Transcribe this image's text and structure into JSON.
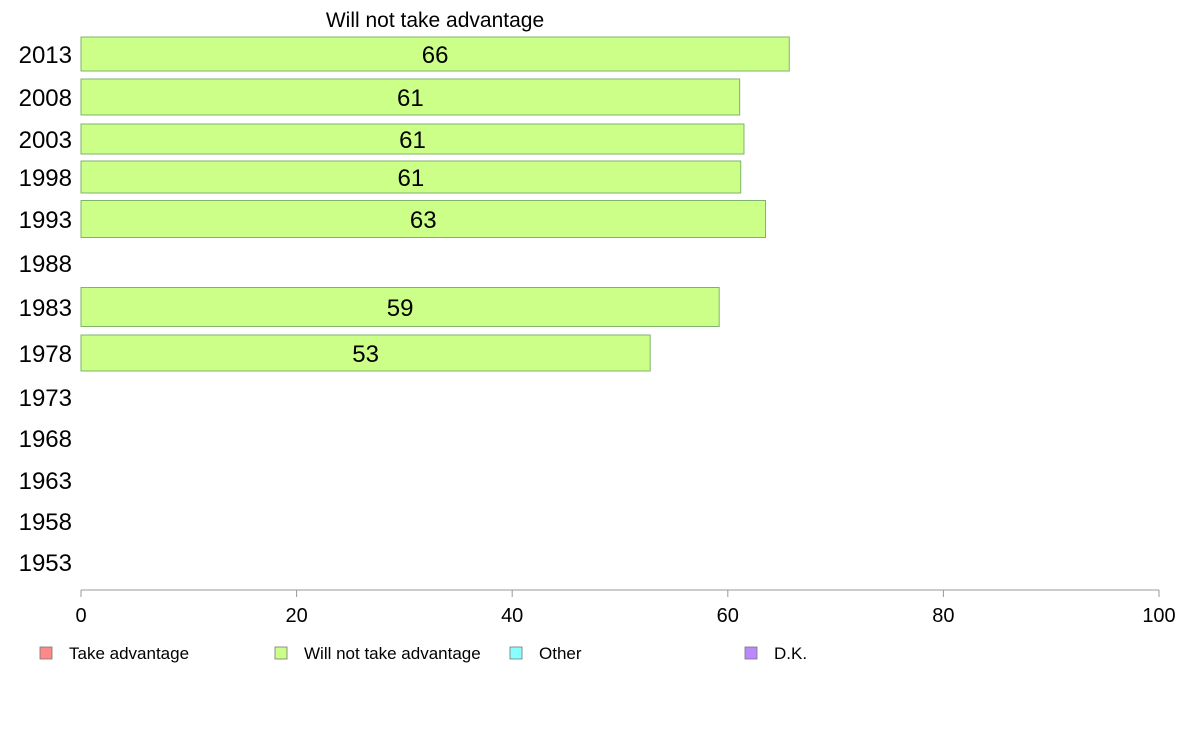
{
  "chart_data": {
    "type": "bar",
    "orientation": "horizontal",
    "title": "Will not take advantage",
    "categories": [
      "2013",
      "2008",
      "2003",
      "1998",
      "1993",
      "1988",
      "1983",
      "1978",
      "1973",
      "1968",
      "1963",
      "1958",
      "1953"
    ],
    "series": [
      {
        "name": "Will not take advantage",
        "color": "#ccff88",
        "values": [
          65.7,
          61.1,
          61.5,
          61.2,
          63.5,
          null,
          59.2,
          52.8,
          null,
          null,
          null,
          null,
          null
        ],
        "labels": [
          "66",
          "61",
          "61",
          "61",
          "63",
          "",
          "59",
          "53",
          "",
          "",
          "",
          "",
          ""
        ]
      }
    ],
    "xlim": [
      0,
      100
    ],
    "xticks": [
      0,
      20,
      40,
      60,
      80,
      100
    ],
    "grid": false,
    "legend_position": "bottom",
    "legend": [
      {
        "label": "Take advantage",
        "color": "#ff8888"
      },
      {
        "label": "Will not take advantage",
        "color": "#ccff88"
      },
      {
        "label": "Other",
        "color": "#88ffff"
      },
      {
        "label": "D.K.",
        "color": "#bb88ff"
      }
    ]
  }
}
